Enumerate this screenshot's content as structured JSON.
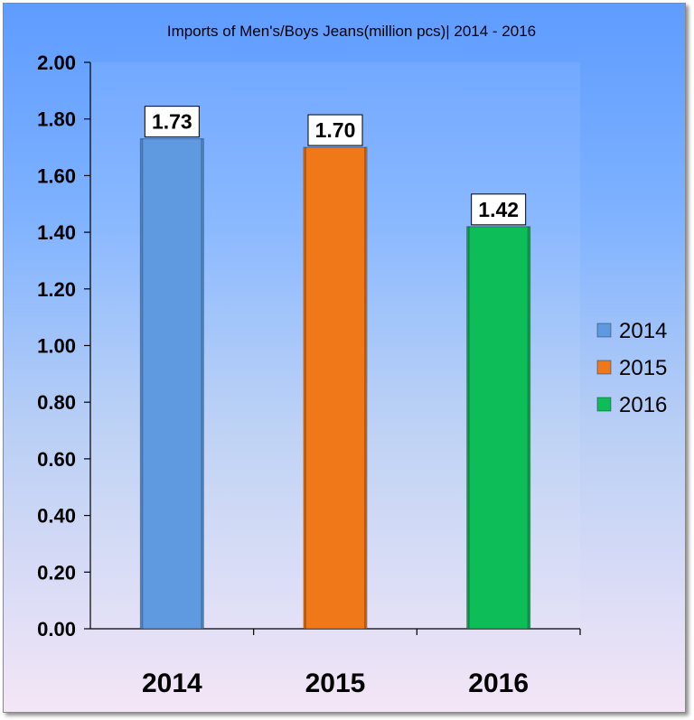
{
  "chart_data": {
    "type": "bar",
    "title": "Imports of Men's/Boys Jeans(million pcs)| 2014 - 2016",
    "categories": [
      "2014",
      "2015",
      "2016"
    ],
    "values": [
      1.73,
      1.7,
      1.42
    ],
    "value_labels": [
      "1.73",
      "1.70",
      "1.42"
    ],
    "bar_colors": [
      "#5f9ae0",
      "#f07818",
      "#0cbd58"
    ],
    "legend": {
      "position": "right",
      "entries": [
        {
          "label": "2014",
          "color": "#5f9ae0"
        },
        {
          "label": "2015",
          "color": "#f07818"
        },
        {
          "label": "2016",
          "color": "#0cbd58"
        }
      ]
    },
    "ylim": [
      0,
      2.0
    ],
    "yticks": [
      "0.00",
      "0.20",
      "0.40",
      "0.60",
      "0.80",
      "1.00",
      "1.20",
      "1.40",
      "1.60",
      "1.80",
      "2.00"
    ],
    "xlabel": "",
    "ylabel": "",
    "grid": false
  }
}
